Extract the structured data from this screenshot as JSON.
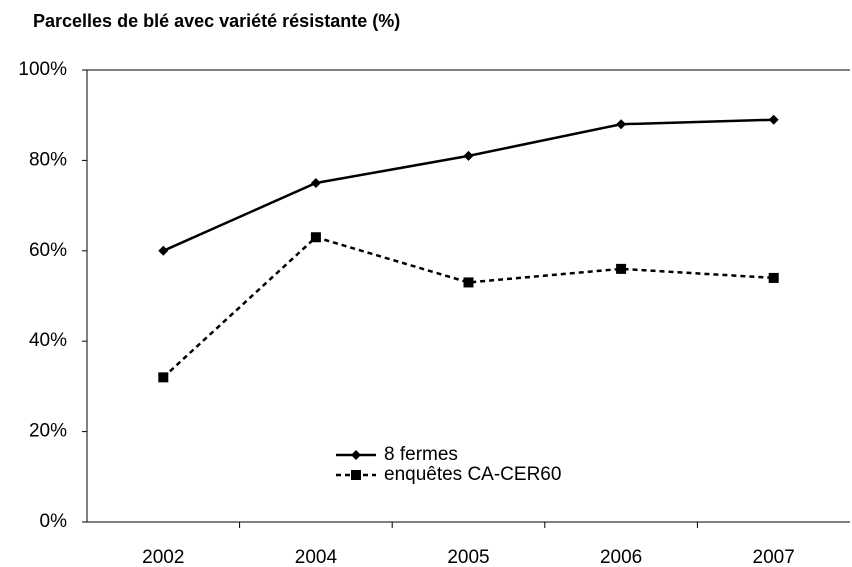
{
  "chart_data": {
    "type": "line",
    "title": "Parcelles de blé avec variété résistante (%)",
    "categories": [
      "2002",
      "2004",
      "2005",
      "2006",
      "2007"
    ],
    "series": [
      {
        "name": "8 fermes",
        "color": "#000000",
        "marker": "diamond",
        "linestyle": "solid",
        "values": [
          60,
          75,
          81,
          88,
          89
        ]
      },
      {
        "name": "enquêtes CA-CER60",
        "color": "#000000",
        "marker": "square",
        "linestyle": "dashed",
        "values": [
          32,
          63,
          53,
          56,
          54
        ]
      }
    ],
    "ylim": [
      0,
      100
    ],
    "yticks": [
      {
        "value": 0,
        "label": "0%"
      },
      {
        "value": 20,
        "label": "20%"
      },
      {
        "value": 40,
        "label": "40%"
      },
      {
        "value": 60,
        "label": "60%"
      },
      {
        "value": 80,
        "label": "80%"
      },
      {
        "value": 100,
        "label": "100%"
      }
    ],
    "grid": false
  }
}
